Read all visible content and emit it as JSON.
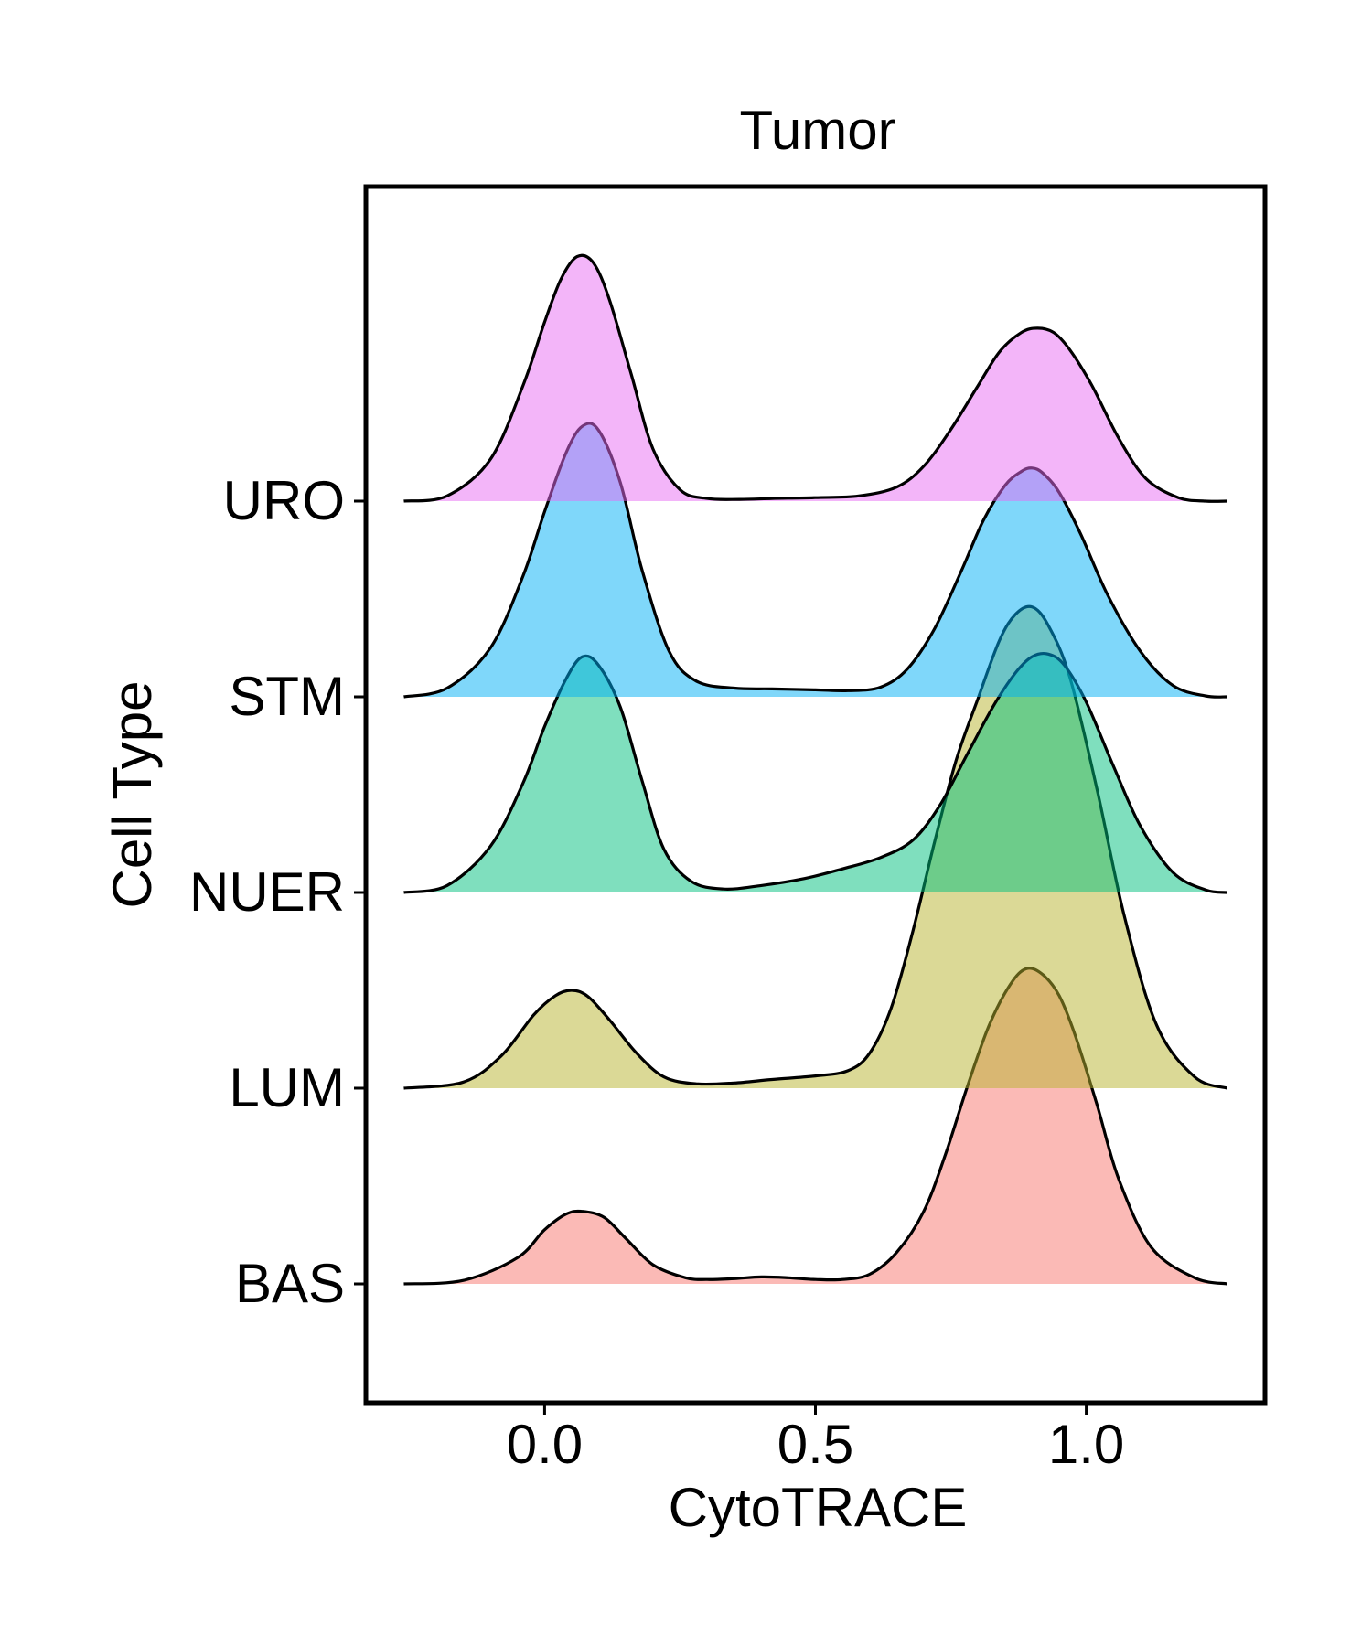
{
  "chart_data": {
    "type": "ridgeline",
    "title": "Tumor",
    "xlabel": "CytoTRACE",
    "ylabel": "Cell Type",
    "xlim": [
      -0.33,
      1.33
    ],
    "x_ticks": [
      0.0,
      0.5,
      1.0
    ],
    "x_tick_labels": [
      "0.0",
      "0.5",
      "1.0"
    ],
    "grid": false,
    "legend": "none",
    "density_range": [
      -0.26,
      1.26
    ],
    "categories": [
      "BAS",
      "LUM",
      "NUER",
      "STM",
      "URO"
    ],
    "series": [
      {
        "name": "BAS",
        "color": "#F8766D",
        "x": [
          -0.26,
          -0.15,
          -0.05,
          0.0,
          0.04,
          0.07,
          0.11,
          0.15,
          0.2,
          0.26,
          0.3,
          0.35,
          0.4,
          0.45,
          0.5,
          0.55,
          0.6,
          0.65,
          0.7,
          0.74,
          0.78,
          0.82,
          0.86,
          0.89,
          0.92,
          0.95,
          0.98,
          1.02,
          1.06,
          1.12,
          1.2,
          1.26
        ],
        "density": [
          0.0,
          0.04,
          0.3,
          0.62,
          0.8,
          0.83,
          0.76,
          0.52,
          0.22,
          0.07,
          0.05,
          0.06,
          0.08,
          0.07,
          0.05,
          0.05,
          0.11,
          0.36,
          0.83,
          1.48,
          2.25,
          2.95,
          3.43,
          3.61,
          3.54,
          3.3,
          2.84,
          2.05,
          1.2,
          0.42,
          0.07,
          0.0
        ]
      },
      {
        "name": "LUM",
        "color": "#B7B42E",
        "x": [
          -0.26,
          -0.15,
          -0.08,
          -0.02,
          0.02,
          0.05,
          0.08,
          0.12,
          0.17,
          0.22,
          0.28,
          0.35,
          0.42,
          0.5,
          0.56,
          0.6,
          0.64,
          0.68,
          0.72,
          0.76,
          0.8,
          0.84,
          0.87,
          0.9,
          0.93,
          0.97,
          1.02,
          1.07,
          1.13,
          1.2,
          1.26
        ],
        "density": [
          0.0,
          0.07,
          0.37,
          0.84,
          1.06,
          1.12,
          1.05,
          0.78,
          0.4,
          0.13,
          0.05,
          0.06,
          0.1,
          0.14,
          0.2,
          0.4,
          0.92,
          1.8,
          2.82,
          3.76,
          4.46,
          5.13,
          5.43,
          5.51,
          5.3,
          4.7,
          3.42,
          1.98,
          0.72,
          0.13,
          0.0
        ]
      },
      {
        "name": "NUER",
        "color": "#00BF7D",
        "x": [
          -0.26,
          -0.18,
          -0.1,
          -0.04,
          0.0,
          0.04,
          0.07,
          0.1,
          0.14,
          0.18,
          0.22,
          0.27,
          0.33,
          0.4,
          0.48,
          0.55,
          0.62,
          0.68,
          0.73,
          0.78,
          0.83,
          0.87,
          0.9,
          0.93,
          0.96,
          1.0,
          1.05,
          1.1,
          1.16,
          1.22,
          1.26
        ],
        "density": [
          0.0,
          0.08,
          0.53,
          1.25,
          1.9,
          2.45,
          2.7,
          2.6,
          2.12,
          1.28,
          0.5,
          0.13,
          0.04,
          0.08,
          0.16,
          0.27,
          0.4,
          0.6,
          1.0,
          1.58,
          2.15,
          2.52,
          2.7,
          2.73,
          2.6,
          2.18,
          1.45,
          0.76,
          0.23,
          0.03,
          0.0
        ]
      },
      {
        "name": "STM",
        "color": "#00B0F6",
        "x": [
          -0.26,
          -0.18,
          -0.1,
          -0.04,
          0.0,
          0.04,
          0.07,
          0.1,
          0.14,
          0.18,
          0.23,
          0.28,
          0.35,
          0.42,
          0.5,
          0.56,
          0.62,
          0.67,
          0.72,
          0.77,
          0.81,
          0.85,
          0.88,
          0.9,
          0.92,
          0.95,
          0.99,
          1.04,
          1.1,
          1.16,
          1.22,
          1.26
        ],
        "density": [
          0.0,
          0.1,
          0.56,
          1.38,
          2.12,
          2.8,
          3.1,
          3.05,
          2.45,
          1.45,
          0.52,
          0.18,
          0.1,
          0.09,
          0.08,
          0.07,
          0.11,
          0.32,
          0.78,
          1.45,
          2.02,
          2.42,
          2.58,
          2.62,
          2.56,
          2.34,
          1.86,
          1.16,
          0.52,
          0.13,
          0.01,
          0.0
        ]
      },
      {
        "name": "URO",
        "color": "#E76BF3",
        "x": [
          -0.26,
          -0.18,
          -0.1,
          -0.04,
          0.0,
          0.03,
          0.06,
          0.09,
          0.12,
          0.16,
          0.2,
          0.25,
          0.3,
          0.36,
          0.42,
          0.5,
          0.58,
          0.65,
          0.7,
          0.75,
          0.8,
          0.84,
          0.88,
          0.91,
          0.94,
          0.97,
          1.01,
          1.06,
          1.11,
          1.17,
          1.22,
          1.26
        ],
        "density": [
          0.0,
          0.06,
          0.48,
          1.32,
          2.05,
          2.54,
          2.8,
          2.73,
          2.3,
          1.45,
          0.6,
          0.13,
          0.03,
          0.02,
          0.03,
          0.04,
          0.06,
          0.16,
          0.4,
          0.82,
          1.32,
          1.71,
          1.93,
          1.98,
          1.93,
          1.73,
          1.33,
          0.72,
          0.26,
          0.04,
          0.0,
          0.0
        ]
      }
    ]
  }
}
